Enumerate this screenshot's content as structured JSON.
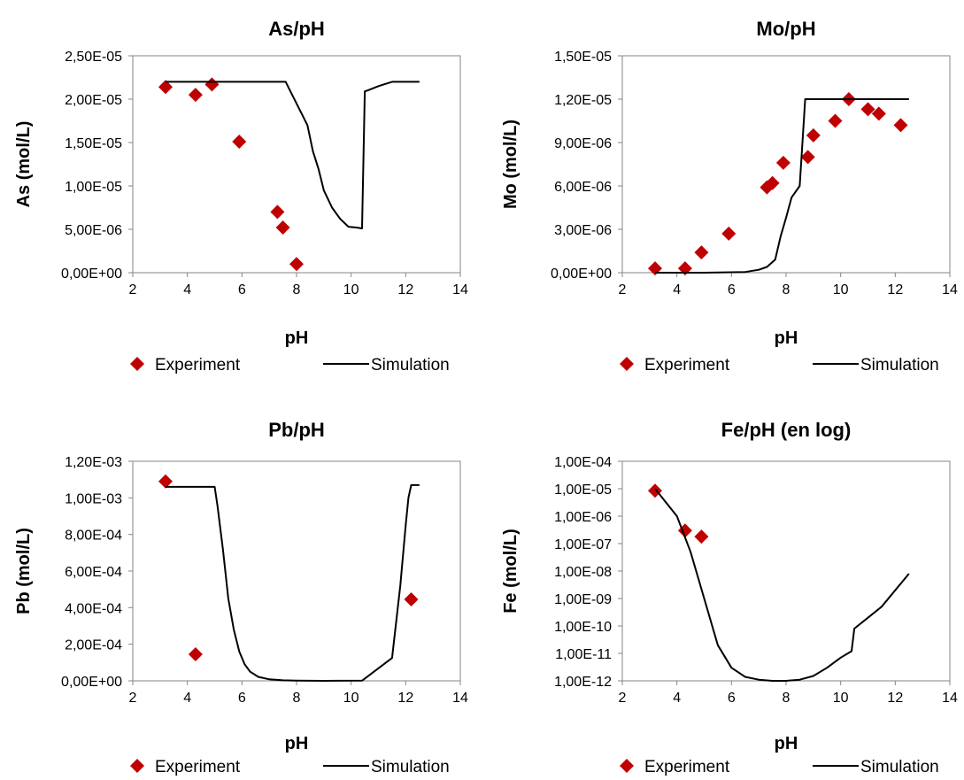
{
  "chart_data": [
    {
      "type": "scatter",
      "title": "As/pH",
      "xlabel": "pH",
      "ylabel": "As (mol/L)",
      "xlim": [
        2,
        14
      ],
      "ylim": [
        0,
        2.5e-05
      ],
      "x_ticks": [
        "2",
        "4",
        "6",
        "8",
        "10",
        "12",
        "14"
      ],
      "y_ticks": [
        "0,00E+00",
        "5,00E-06",
        "1,00E-05",
        "1,50E-05",
        "2,00E-05",
        "2,50E-05"
      ],
      "grid": "none",
      "legend": "bottom",
      "series": [
        {
          "name": "Experiment",
          "kind": "marker",
          "color": "#c00000",
          "x": [
            3.2,
            4.3,
            4.9,
            5.9,
            7.3,
            7.5,
            8.0
          ],
          "y": [
            2.14e-05,
            2.05e-05,
            2.17e-05,
            1.51e-05,
            7e-06,
            5.2e-06,
            1e-06
          ]
        },
        {
          "name": "Simulation",
          "kind": "line",
          "color": "#000000",
          "x": [
            3.2,
            7.6,
            8.0,
            8.4,
            8.6,
            8.8,
            9.0,
            9.3,
            9.6,
            9.9,
            10.2,
            10.4,
            10.5,
            10.6,
            11.0,
            11.5,
            12.5
          ],
          "y": [
            2.2e-05,
            2.2e-05,
            1.95e-05,
            1.7e-05,
            1.4e-05,
            1.2e-05,
            9.5e-06,
            7.5e-06,
            6.2e-06,
            5.3e-06,
            5.2e-06,
            5.1e-06,
            2.09e-05,
            2.1e-05,
            2.15e-05,
            2.2e-05,
            2.2e-05
          ]
        }
      ]
    },
    {
      "type": "scatter",
      "title": "Mo/pH",
      "xlabel": "pH",
      "ylabel": "Mo (mol/L)",
      "xlim": [
        2,
        14
      ],
      "ylim": [
        0,
        1.5e-05
      ],
      "x_ticks": [
        "2",
        "4",
        "6",
        "8",
        "10",
        "12",
        "14"
      ],
      "y_ticks": [
        "0,00E+00",
        "3,00E-06",
        "6,00E-06",
        "9,00E-06",
        "1,20E-05",
        "1,50E-05"
      ],
      "grid": "none",
      "legend": "bottom",
      "series": [
        {
          "name": "Experiment",
          "kind": "marker",
          "color": "#c00000",
          "x": [
            3.2,
            4.3,
            4.9,
            5.9,
            7.3,
            7.5,
            7.9,
            8.8,
            9.0,
            9.8,
            10.3,
            11.0,
            11.4,
            12.2
          ],
          "y": [
            3e-07,
            3e-07,
            1.4e-06,
            2.7e-06,
            5.9e-06,
            6.2e-06,
            7.6e-06,
            8e-06,
            9.5e-06,
            1.05e-05,
            1.2e-05,
            1.13e-05,
            1.1e-05,
            1.02e-05
          ]
        },
        {
          "name": "Simulation",
          "kind": "line",
          "color": "#000000",
          "x": [
            3.2,
            5.0,
            6.5,
            7.0,
            7.3,
            7.6,
            7.8,
            8.0,
            8.2,
            8.5,
            8.7,
            12.5
          ],
          "y": [
            0,
            0,
            5e-08,
            2e-07,
            4e-07,
            9e-07,
            2.5e-06,
            3.8e-06,
            5.2e-06,
            6e-06,
            1.2e-05,
            1.2e-05
          ]
        }
      ]
    },
    {
      "type": "scatter",
      "title": "Pb/pH",
      "xlabel": "pH",
      "ylabel": "Pb (mol/L)",
      "xlim": [
        2,
        14
      ],
      "ylim": [
        0,
        0.0012
      ],
      "x_ticks": [
        "2",
        "4",
        "6",
        "8",
        "10",
        "12",
        "14"
      ],
      "y_ticks": [
        "0,00E+00",
        "2,00E-04",
        "4,00E-04",
        "6,00E-04",
        "8,00E-04",
        "1,00E-03",
        "1,20E-03"
      ],
      "grid": "none",
      "legend": "bottom",
      "series": [
        {
          "name": "Experiment",
          "kind": "marker",
          "color": "#c00000",
          "x": [
            3.2,
            4.3,
            12.2
          ],
          "y": [
            0.00109,
            0.000145,
            0.000445
          ]
        },
        {
          "name": "Simulation",
          "kind": "line",
          "color": "#000000",
          "x": [
            3.2,
            5.0,
            5.1,
            5.3,
            5.5,
            5.7,
            5.9,
            6.1,
            6.3,
            6.6,
            7.0,
            7.5,
            8.0,
            9.0,
            10.4,
            11.5,
            11.8,
            12.0,
            12.1,
            12.2,
            12.5
          ],
          "y": [
            0.00106,
            0.00106,
            0.00096,
            0.00072,
            0.00045,
            0.00028,
            0.00016,
            9e-05,
            5e-05,
            2.2e-05,
            8e-06,
            3e-06,
            1e-06,
            0,
            1e-06,
            0.000125,
            0.00052,
            0.00085,
            0.001,
            0.00107,
            0.00107
          ]
        }
      ]
    },
    {
      "type": "scatter",
      "title": "Fe/pH (en log)",
      "xlabel": "pH",
      "ylabel": "Fe (mol/L)",
      "xlim": [
        2,
        14
      ],
      "yscale": "log",
      "ylim": [
        1e-12,
        0.0001
      ],
      "x_ticks": [
        "2",
        "4",
        "6",
        "8",
        "10",
        "12",
        "14"
      ],
      "y_ticks": [
        "1,00E-12",
        "1,00E-11",
        "1,00E-10",
        "1,00E-09",
        "1,00E-08",
        "1,00E-07",
        "1,00E-06",
        "1,00E-05",
        "1,00E-04"
      ],
      "grid": "none",
      "legend": "bottom",
      "series": [
        {
          "name": "Experiment",
          "kind": "marker",
          "color": "#c00000",
          "x": [
            3.2,
            4.3,
            4.9
          ],
          "y": [
            8.5e-06,
            3e-07,
            1.8e-07
          ]
        },
        {
          "name": "Simulation",
          "kind": "line",
          "color": "#000000",
          "x": [
            3.2,
            4.0,
            4.5,
            5.0,
            5.5,
            6.0,
            6.5,
            7.0,
            7.5,
            8.0,
            8.5,
            9.0,
            9.5,
            10.0,
            10.4,
            10.5,
            11.0,
            11.5,
            12.0,
            12.5
          ],
          "y": [
            1e-05,
            1e-06,
            5e-08,
            1e-09,
            2e-11,
            3e-12,
            1.4e-12,
            1.1e-12,
            1e-12,
            1e-12,
            1.1e-12,
            1.5e-12,
            3e-12,
            7e-12,
            1.2e-11,
            8e-11,
            2e-10,
            5e-10,
            2e-09,
            8e-09
          ]
        }
      ]
    }
  ]
}
